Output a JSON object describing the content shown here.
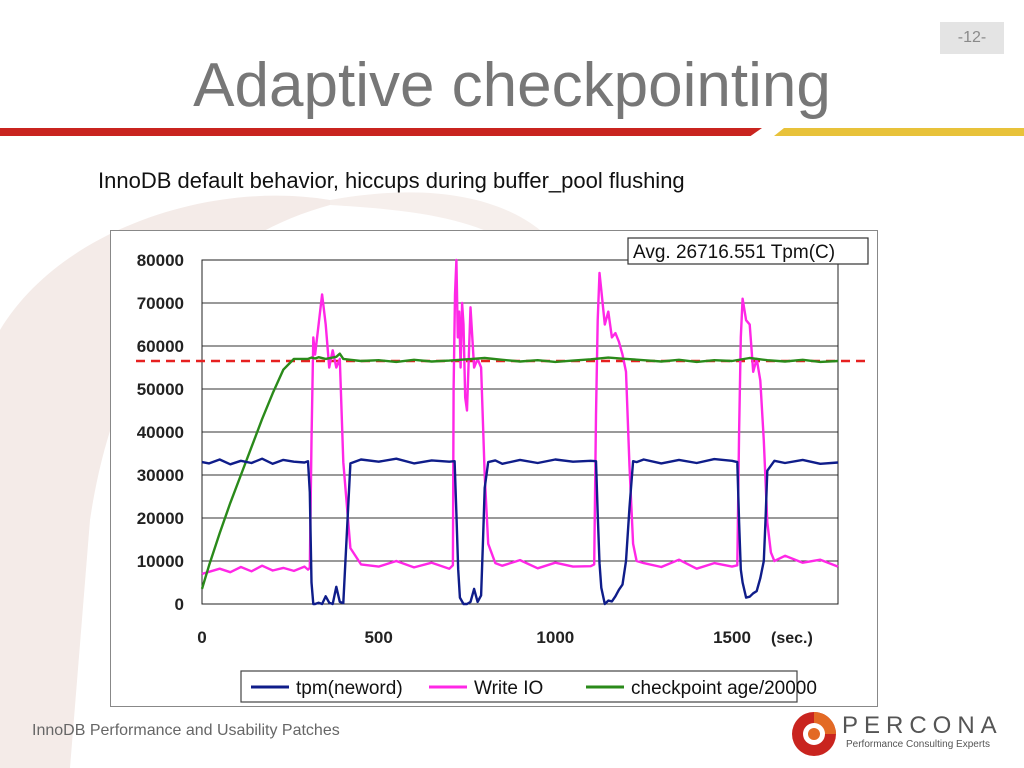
{
  "slide": {
    "title": "Adaptive checkpointing",
    "page_number": "-12-",
    "subtitle": "InnoDB default behavior,  hiccups during buffer_pool flushing",
    "footer": "InnoDB Performance and Usability Patches"
  },
  "brand": {
    "name": "PERCONA",
    "tagline": "Performance Consulting Experts",
    "colors": {
      "primary": "#e36a24",
      "dark": "#c9241f"
    }
  },
  "colors": {
    "rule_red": "#c9241f",
    "rule_yellow": "#e8c23a",
    "tpm": "#0f1d8a",
    "write_io": "#ff27e6",
    "checkpoint": "#2a8a1a",
    "threshold": "#e62020"
  },
  "chart_data": {
    "type": "line",
    "title": "",
    "annotation": "Avg. 26716.551 Tpm(C)",
    "xlabel": "(sec.)",
    "ylabel": "",
    "xlim": [
      0,
      1800
    ],
    "ylim": [
      0,
      80000
    ],
    "xticks": [
      0,
      500,
      1000,
      1500
    ],
    "xtick_labels": [
      "0",
      "500",
      "1000",
      "1500"
    ],
    "yticks": [
      0,
      10000,
      20000,
      30000,
      40000,
      50000,
      60000,
      70000,
      80000
    ],
    "ytick_labels": [
      "0",
      "10000",
      "20000",
      "30000",
      "40000",
      "50000",
      "60000",
      "70000",
      "80000"
    ],
    "grid": "horizontal",
    "legend": "bottom",
    "threshold": 56500,
    "series": [
      {
        "name": "tpm(neword)",
        "color": "#0f1d8a",
        "x": [
          0,
          20,
          50,
          80,
          110,
          140,
          170,
          200,
          230,
          260,
          290,
          300,
          305,
          310,
          315,
          320,
          330,
          340,
          350,
          360,
          370,
          380,
          390,
          400,
          420,
          450,
          500,
          550,
          600,
          650,
          700,
          715,
          720,
          725,
          730,
          740,
          750,
          760,
          770,
          780,
          790,
          795,
          800,
          810,
          830,
          850,
          900,
          950,
          1000,
          1050,
          1100,
          1115,
          1120,
          1125,
          1130,
          1140,
          1150,
          1160,
          1170,
          1180,
          1190,
          1200,
          1210,
          1220,
          1230,
          1250,
          1300,
          1350,
          1400,
          1450,
          1500,
          1515,
          1520,
          1525,
          1530,
          1540,
          1550,
          1560,
          1570,
          1580,
          1590,
          1595,
          1600,
          1620,
          1650,
          1700,
          1750,
          1800
        ],
        "y": [
          33000,
          32700,
          33600,
          32500,
          33300,
          32800,
          33800,
          32600,
          33500,
          33100,
          32900,
          33200,
          26000,
          5000,
          0,
          0,
          300,
          0,
          1800,
          300,
          0,
          4000,
          500,
          200,
          32700,
          33600,
          33100,
          33800,
          32700,
          33400,
          33100,
          33200,
          21000,
          8000,
          1500,
          0,
          0,
          500,
          3500,
          500,
          2000,
          14000,
          27000,
          33000,
          33400,
          32600,
          33500,
          32800,
          33600,
          33100,
          33300,
          33200,
          21000,
          9500,
          3800,
          0,
          800,
          600,
          1800,
          3300,
          4500,
          10000,
          22500,
          33200,
          33000,
          33600,
          32700,
          33500,
          32800,
          33700,
          33300,
          33000,
          19000,
          8000,
          5000,
          1500,
          1700,
          2500,
          3000,
          6000,
          10000,
          20000,
          31000,
          33300,
          32800,
          33500,
          32600,
          32900
        ]
      },
      {
        "name": "Write IO",
        "color": "#ff27e6",
        "x": [
          0,
          20,
          50,
          80,
          110,
          140,
          170,
          200,
          230,
          260,
          290,
          300,
          305,
          310,
          315,
          320,
          330,
          340,
          350,
          360,
          370,
          380,
          390,
          400,
          420,
          450,
          500,
          550,
          600,
          650,
          700,
          710,
          712,
          716,
          720,
          724,
          728,
          732,
          736,
          740,
          745,
          750,
          760,
          770,
          780,
          790,
          800,
          810,
          830,
          850,
          900,
          950,
          1000,
          1050,
          1100,
          1110,
          1115,
          1120,
          1125,
          1130,
          1140,
          1150,
          1160,
          1170,
          1180,
          1190,
          1200,
          1210,
          1220,
          1230,
          1250,
          1300,
          1350,
          1400,
          1450,
          1500,
          1515,
          1520,
          1525,
          1530,
          1540,
          1550,
          1560,
          1570,
          1580,
          1590,
          1600,
          1610,
          1620,
          1650,
          1700,
          1750,
          1800
        ],
        "y": [
          7000,
          7500,
          8200,
          7400,
          8600,
          7600,
          8900,
          7800,
          8400,
          7700,
          8700,
          8000,
          8400,
          38000,
          62000,
          58000,
          65000,
          72000,
          65000,
          55000,
          59000,
          55000,
          57000,
          33000,
          13000,
          9200,
          8700,
          10000,
          8500,
          9600,
          8200,
          9000,
          50000,
          72000,
          80000,
          62000,
          68000,
          55000,
          70000,
          65000,
          48000,
          45000,
          69000,
          55000,
          57000,
          55000,
          30000,
          14000,
          9500,
          8900,
          10200,
          8300,
          9600,
          8700,
          8800,
          9200,
          44000,
          66000,
          77000,
          73000,
          65000,
          68000,
          62000,
          63000,
          61000,
          58000,
          54000,
          32000,
          14000,
          10000,
          9500,
          8600,
          10300,
          8200,
          9500,
          8700,
          9000,
          40000,
          62000,
          71000,
          66000,
          65000,
          54000,
          57000,
          52000,
          38000,
          19000,
          12000,
          10000,
          11200,
          9600,
          10300,
          8700
        ]
      },
      {
        "name": "checkpoint age/20000",
        "color": "#2a8a1a",
        "x": [
          0,
          20,
          50,
          80,
          110,
          140,
          170,
          200,
          230,
          260,
          290,
          300,
          310,
          320,
          330,
          350,
          380,
          390,
          400,
          420,
          450,
          500,
          550,
          600,
          650,
          700,
          750,
          800,
          850,
          900,
          950,
          1000,
          1050,
          1100,
          1150,
          1200,
          1250,
          1300,
          1350,
          1400,
          1450,
          1500,
          1550,
          1600,
          1650,
          1700,
          1750,
          1800
        ],
        "y": [
          3500,
          9000,
          16500,
          23500,
          30000,
          36500,
          43000,
          49000,
          54500,
          57000,
          57000,
          57000,
          57300,
          57100,
          57400,
          57000,
          57500,
          58200,
          57000,
          56800,
          56500,
          56700,
          56300,
          56800,
          56400,
          56600,
          56900,
          57200,
          56800,
          56400,
          56700,
          56300,
          56600,
          56900,
          57300,
          57000,
          56700,
          56400,
          56800,
          56300,
          56700,
          56500,
          57200,
          56700,
          56400,
          56800,
          56300,
          56500
        ]
      }
    ]
  }
}
